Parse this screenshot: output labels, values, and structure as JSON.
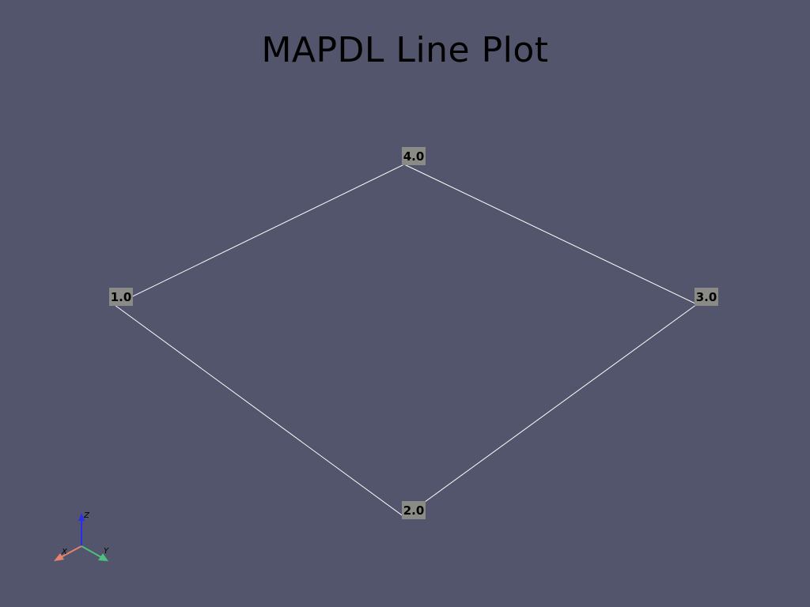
{
  "title": "MAPDL Line Plot",
  "colors": {
    "background": "#52556b",
    "line": "#ffffff",
    "label_box": "#8a8a86",
    "axis_x": "#e8826a",
    "axis_y": "#4fbf7f",
    "axis_z": "#2c2cf0"
  },
  "keypoints": [
    {
      "label": "1.0"
    },
    {
      "label": "2.0"
    },
    {
      "label": "3.0"
    },
    {
      "label": "4.0"
    }
  ],
  "lines": [
    {
      "from": "1.0",
      "to": "2.0"
    },
    {
      "from": "2.0",
      "to": "3.0"
    },
    {
      "from": "3.0",
      "to": "4.0"
    },
    {
      "from": "4.0",
      "to": "1.0"
    }
  ],
  "axes_widget": {
    "x_label": "X",
    "y_label": "Y",
    "z_label": "Z"
  }
}
